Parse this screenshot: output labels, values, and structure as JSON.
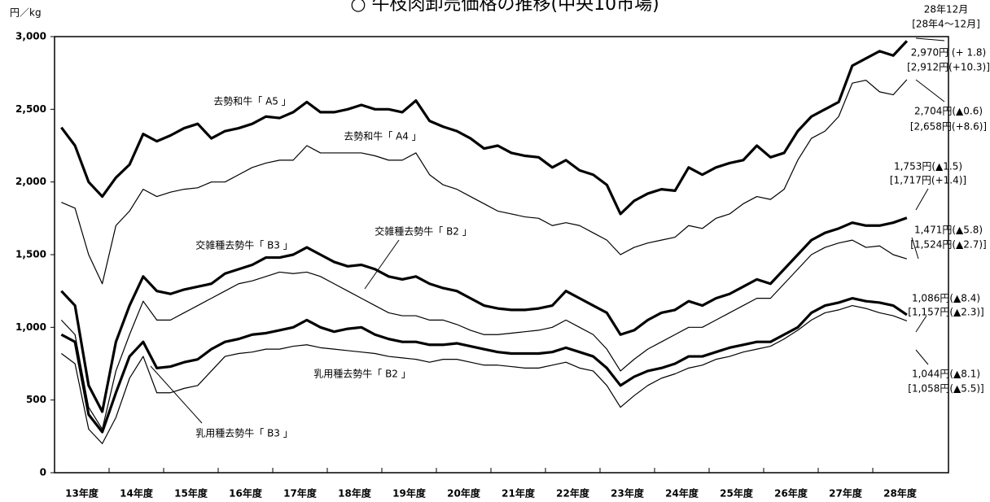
{
  "chart_data": {
    "type": "line",
    "title": "○ 牛枝肉卸売価格の推移(中央10市場)",
    "y_label": "円／kg",
    "categories": [
      "13年度",
      null,
      null,
      null,
      "14年度",
      null,
      null,
      null,
      "15年度",
      null,
      null,
      null,
      "16年度",
      null,
      null,
      null,
      "17年度",
      null,
      null,
      null,
      "18年度",
      null,
      null,
      null,
      "19年度",
      null,
      null,
      null,
      "20年度",
      null,
      null,
      null,
      "21年度",
      null,
      null,
      null,
      "22年度",
      null,
      null,
      null,
      "23年度",
      null,
      null,
      null,
      "24年度",
      null,
      null,
      null,
      "25年度",
      null,
      null,
      null,
      "26年度",
      null,
      null,
      null,
      "27年度",
      null,
      null,
      null,
      "28年度",
      null,
      null
    ],
    "ylim": [
      0,
      3000
    ],
    "yticks": [
      0,
      500,
      {
        "value": 1000,
        "label": "1,000"
      },
      {
        "value": 1500,
        "label": "1,500"
      },
      {
        "value": 2000,
        "label": "2,000"
      },
      {
        "value": 2500,
        "label": "2,500"
      },
      {
        "value": 3000,
        "label": "3,000"
      }
    ],
    "grid": false,
    "series": [
      {
        "name": "去勢和牛「 A5 」",
        "color": "#000000",
        "width": 3.2,
        "values": [
          2375,
          2250,
          2000,
          1900,
          2030,
          2120,
          2330,
          2280,
          2320,
          2370,
          2400,
          2300,
          2350,
          2370,
          2400,
          2450,
          2440,
          2480,
          2550,
          2480,
          2480,
          2500,
          2530,
          2500,
          2500,
          2480,
          2560,
          2420,
          2380,
          2350,
          2300,
          2230,
          2250,
          2200,
          2180,
          2170,
          2100,
          2150,
          2080,
          2050,
          1980,
          1780,
          1870,
          1920,
          1950,
          1940,
          2100,
          2050,
          2100,
          2130,
          2150,
          2250,
          2170,
          2200,
          2350,
          2450,
          2500,
          2550,
          2800,
          2850,
          2900,
          2870,
          2970
        ]
      },
      {
        "name": "去勢和牛「 A4 」",
        "color": "#000000",
        "width": 1.2,
        "values": [
          1860,
          1820,
          1500,
          1300,
          1700,
          1800,
          1950,
          1900,
          1930,
          1950,
          1960,
          2000,
          2000,
          2050,
          2100,
          2130,
          2150,
          2150,
          2250,
          2200,
          2200,
          2200,
          2200,
          2180,
          2150,
          2150,
          2200,
          2050,
          1980,
          1950,
          1900,
          1850,
          1800,
          1780,
          1760,
          1750,
          1700,
          1720,
          1700,
          1650,
          1600,
          1500,
          1550,
          1580,
          1600,
          1620,
          1700,
          1680,
          1750,
          1780,
          1850,
          1900,
          1880,
          1950,
          2150,
          2300,
          2350,
          2450,
          2680,
          2700,
          2620,
          2600,
          2704
        ]
      },
      {
        "name": "交雑種去勢牛「 B3 」",
        "color": "#000000",
        "width": 3.2,
        "values": [
          1250,
          1150,
          600,
          420,
          900,
          1150,
          1350,
          1250,
          1230,
          1260,
          1280,
          1300,
          1370,
          1400,
          1430,
          1480,
          1480,
          1500,
          1550,
          1500,
          1450,
          1420,
          1430,
          1400,
          1350,
          1330,
          1350,
          1300,
          1270,
          1250,
          1200,
          1150,
          1130,
          1120,
          1120,
          1130,
          1150,
          1250,
          1200,
          1150,
          1100,
          950,
          980,
          1050,
          1100,
          1120,
          1180,
          1150,
          1200,
          1230,
          1280,
          1330,
          1300,
          1400,
          1500,
          1600,
          1650,
          1680,
          1720,
          1700,
          1700,
          1720,
          1753
        ]
      },
      {
        "name": "交雑種去勢牛「 B2 」",
        "color": "#000000",
        "width": 1.2,
        "values": [
          1050,
          950,
          450,
          300,
          700,
          950,
          1180,
          1050,
          1050,
          1100,
          1150,
          1200,
          1250,
          1300,
          1320,
          1350,
          1380,
          1370,
          1380,
          1350,
          1300,
          1250,
          1200,
          1150,
          1100,
          1080,
          1080,
          1050,
          1050,
          1020,
          980,
          950,
          950,
          960,
          970,
          980,
          1000,
          1050,
          1000,
          950,
          850,
          700,
          780,
          850,
          900,
          950,
          1000,
          1000,
          1050,
          1100,
          1150,
          1200,
          1200,
          1300,
          1400,
          1500,
          1550,
          1580,
          1600,
          1550,
          1560,
          1500,
          1471
        ]
      },
      {
        "name": "乳用種去勢牛「 B3 」",
        "color": "#000000",
        "width": 3.2,
        "values": [
          950,
          900,
          400,
          280,
          550,
          800,
          900,
          720,
          730,
          760,
          780,
          850,
          900,
          920,
          950,
          960,
          980,
          1000,
          1050,
          1000,
          970,
          990,
          1000,
          950,
          920,
          900,
          900,
          880,
          880,
          890,
          870,
          850,
          830,
          820,
          820,
          820,
          830,
          860,
          830,
          800,
          720,
          600,
          660,
          700,
          720,
          750,
          800,
          800,
          830,
          860,
          880,
          900,
          900,
          950,
          1000,
          1100,
          1150,
          1170,
          1200,
          1180,
          1170,
          1150,
          1086
        ]
      },
      {
        "name": "乳用種去勢牛「 B2 」",
        "color": "#000000",
        "width": 1.2,
        "values": [
          820,
          750,
          300,
          200,
          380,
          650,
          800,
          550,
          550,
          580,
          600,
          700,
          800,
          820,
          830,
          850,
          850,
          870,
          880,
          860,
          850,
          840,
          830,
          820,
          800,
          790,
          780,
          760,
          780,
          780,
          760,
          740,
          740,
          730,
          720,
          720,
          740,
          760,
          720,
          700,
          600,
          450,
          530,
          600,
          650,
          680,
          720,
          740,
          780,
          800,
          830,
          850,
          870,
          920,
          980,
          1050,
          1100,
          1120,
          1150,
          1130,
          1100,
          1080,
          1044
        ]
      }
    ],
    "annotations": [
      "28年12月",
      "[28年4～12月]",
      "2,970円 (+ 1.8)",
      "[2,912円(+10.3)]",
      "2,704円(▲0.6)",
      "[2,658円(+8.6)]",
      "1,753円(▲1.5)",
      "[1,717円(+1.4)]",
      "1,471円(▲5.8)",
      "[1,524円(▲2.7)]",
      "1,086円(▲8.4)",
      "[1,157円(▲2.3)]",
      "1,044円(▲8.1)",
      "[1,058円(▲5.5)]"
    ]
  }
}
